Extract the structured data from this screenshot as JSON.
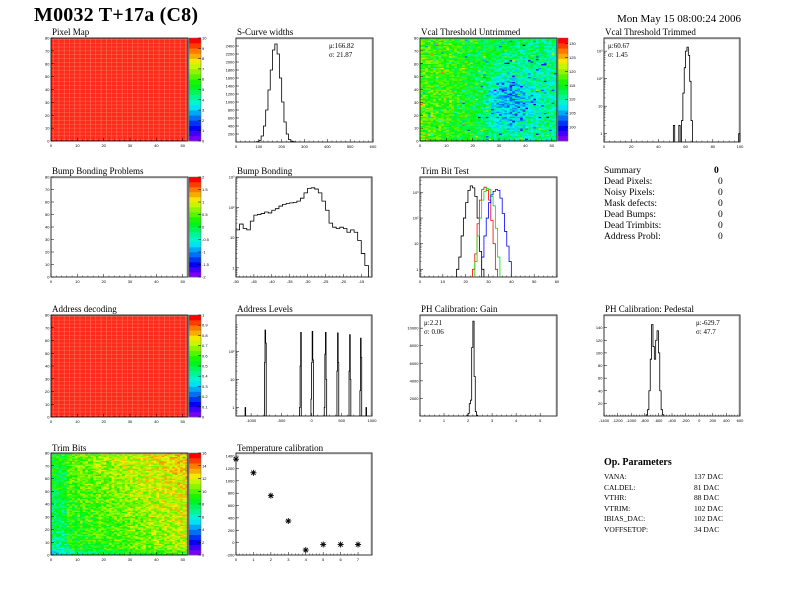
{
  "header": {
    "title": "M0032 T+17a (C8)",
    "date": "Mon May 15 08:00:24 2006"
  },
  "summary": {
    "title": "Summary",
    "total": "0",
    "rows": [
      {
        "label": "Dead Pixels:",
        "value": "0"
      },
      {
        "label": "Noisy Pixels:",
        "value": "0"
      },
      {
        "label": "Mask defects:",
        "value": "0"
      },
      {
        "label": "Dead Bumps:",
        "value": "0"
      },
      {
        "label": "Dead Trimbits:",
        "value": "0"
      },
      {
        "label": "Address Probl:",
        "value": "0"
      }
    ]
  },
  "op_parameters": {
    "title": "Op. Parameters",
    "rows": [
      {
        "label": "VANA:",
        "value": "137 DAC"
      },
      {
        "label": "CALDEL:",
        "value": "81 DAC"
      },
      {
        "label": "VTHR:",
        "value": "88 DAC"
      },
      {
        "label": "VTRIM:",
        "value": "102 DAC"
      },
      {
        "label": "IBIAS_DAC:",
        "value": "102 DAC"
      },
      {
        "label": "VOFFSETOP:",
        "value": "34 DAC"
      }
    ]
  },
  "colors": {
    "histogram_line": "#000000",
    "trim_bit_series": [
      "#000000",
      "#ff0000",
      "#00e000",
      "#0000ff"
    ]
  },
  "chart_data": [
    {
      "id": "pixel_map",
      "type": "heatmap",
      "title": "Pixel Map",
      "xlim": [
        0,
        52
      ],
      "ylim": [
        0,
        80
      ],
      "zlim": [
        0,
        10
      ],
      "xticks": [
        0,
        10,
        20,
        30,
        40,
        50
      ],
      "yticks": [
        0,
        10,
        20,
        30,
        40,
        50,
        60,
        70,
        80
      ],
      "zticks": [
        0,
        1,
        2,
        3,
        4,
        5,
        6,
        7,
        8,
        9,
        10
      ],
      "uniform_value": 10
    },
    {
      "id": "scurve_widths",
      "type": "bar",
      "title": "S-Curve widths",
      "stats": {
        "mean": "μ:166.82",
        "sigma": "σ: 21.87"
      },
      "stats_pos": "top-right",
      "xlim": [
        0,
        600
      ],
      "ylim": [
        0,
        2600
      ],
      "xticks": [
        0,
        100,
        200,
        300,
        400,
        500,
        600
      ],
      "yticks": [
        200,
        400,
        600,
        800,
        1000,
        1200,
        1400,
        1600,
        1800,
        2000,
        2200,
        2400
      ],
      "bin_width": 10,
      "bins": [
        [
          90,
          10
        ],
        [
          100,
          40
        ],
        [
          110,
          150
        ],
        [
          120,
          400
        ],
        [
          130,
          800
        ],
        [
          140,
          1300
        ],
        [
          150,
          1800
        ],
        [
          160,
          2300
        ],
        [
          170,
          2450
        ],
        [
          180,
          2200
        ],
        [
          190,
          1600
        ],
        [
          200,
          1000
        ],
        [
          210,
          500
        ],
        [
          220,
          200
        ],
        [
          230,
          60
        ],
        [
          240,
          20
        ],
        [
          250,
          5
        ]
      ]
    },
    {
      "id": "vcal_untrimmed",
      "type": "heatmap",
      "title": "Vcal Threshold Untrimmed",
      "xlim": [
        0,
        52
      ],
      "ylim": [
        0,
        80
      ],
      "zlim": [
        95,
        132
      ],
      "xticks": [
        0,
        10,
        20,
        30,
        40,
        50
      ],
      "yticks": [
        0,
        10,
        20,
        30,
        40,
        50,
        60,
        70,
        80
      ],
      "zticks": [
        100,
        105,
        110,
        115,
        120,
        125,
        130
      ]
    },
    {
      "id": "vcal_trimmed",
      "type": "bar",
      "title": "Vcal Threshold Trimmed",
      "log_y": true,
      "stats": {
        "mean": "μ:60.67",
        "sigma": "σ: 1.45"
      },
      "stats_pos": "top-left",
      "xlim": [
        0,
        100
      ],
      "ylim": [
        0.5,
        3000
      ],
      "xticks": [
        0,
        20,
        40,
        60,
        80,
        100
      ],
      "yticks": [
        1,
        10,
        100,
        1000
      ],
      "ytick_labels": [
        "1",
        "10",
        "10²",
        "10³"
      ],
      "bin_width": 1,
      "bins": [
        [
          51,
          2
        ],
        [
          55,
          2
        ],
        [
          57,
          3
        ],
        [
          58,
          30
        ],
        [
          59,
          250
        ],
        [
          60,
          1000
        ],
        [
          61,
          1400
        ],
        [
          62,
          700
        ],
        [
          63,
          80
        ],
        [
          64,
          3
        ],
        [
          99,
          1
        ]
      ]
    },
    {
      "id": "bump_bonding_problems",
      "type": "heatmap",
      "title": "Bump Bonding Problems",
      "xlim": [
        0,
        52
      ],
      "ylim": [
        0,
        80
      ],
      "zlim": [
        -2,
        2
      ],
      "xticks": [
        0,
        10,
        20,
        30,
        40,
        50
      ],
      "yticks": [
        0,
        10,
        20,
        30,
        40,
        50,
        60,
        70,
        80
      ],
      "zticks": [
        -2,
        -1.5,
        -1,
        -0.5,
        0,
        0.5,
        1,
        1.5,
        2
      ],
      "empty": true
    },
    {
      "id": "bump_bonding",
      "type": "bar",
      "title": "Bump Bonding",
      "log_y": true,
      "xlim": [
        -50,
        -12
      ],
      "ylim": [
        0.5,
        1000
      ],
      "xticks": [
        -50,
        -45,
        -40,
        -35,
        -30,
        -25,
        -20,
        -15
      ],
      "yticks": [
        1,
        10,
        100,
        1000
      ],
      "ytick_labels": [
        "1",
        "10",
        "10²",
        "10³"
      ],
      "bin_width": 1,
      "bins": [
        [
          -50,
          18
        ],
        [
          -49,
          28
        ],
        [
          -48,
          20
        ],
        [
          -47,
          18
        ],
        [
          -46,
          35
        ],
        [
          -45,
          55
        ],
        [
          -44,
          58
        ],
        [
          -43,
          62
        ],
        [
          -42,
          70
        ],
        [
          -41,
          65
        ],
        [
          -40,
          80
        ],
        [
          -39,
          90
        ],
        [
          -38,
          110
        ],
        [
          -37,
          125
        ],
        [
          -36,
          135
        ],
        [
          -35,
          140
        ],
        [
          -34,
          145
        ],
        [
          -33,
          160
        ],
        [
          -32,
          200
        ],
        [
          -31,
          300
        ],
        [
          -30,
          420
        ],
        [
          -29,
          440
        ],
        [
          -28,
          400
        ],
        [
          -27,
          300
        ],
        [
          -26,
          160
        ],
        [
          -25,
          80
        ],
        [
          -24,
          30
        ],
        [
          -23,
          22
        ],
        [
          -22,
          20
        ],
        [
          -21,
          22
        ],
        [
          -20,
          20
        ],
        [
          -19,
          15
        ],
        [
          -18,
          18
        ],
        [
          -17,
          15
        ],
        [
          -16,
          8
        ],
        [
          -15,
          3
        ],
        [
          -14,
          1.2
        ]
      ]
    },
    {
      "id": "trim_bit_test",
      "type": "bar",
      "title": "Trim Bit Test",
      "log_y": true,
      "xlim": [
        0,
        60
      ],
      "ylim": [
        0.5,
        4000
      ],
      "xticks": [
        0,
        10,
        20,
        30,
        40,
        50,
        60
      ],
      "yticks": [
        1,
        10,
        100,
        1000
      ],
      "ytick_labels": [
        "1",
        "10",
        "10²",
        "10³"
      ],
      "bin_width": 1,
      "series": [
        {
          "bins": [
            [
              16,
              1
            ],
            [
              17,
              3
            ],
            [
              18,
              20
            ],
            [
              19,
              100
            ],
            [
              20,
              400
            ],
            [
              21,
              1200
            ],
            [
              22,
              1800
            ],
            [
              23,
              1500
            ],
            [
              24,
              700
            ],
            [
              25,
              100
            ],
            [
              26,
              5
            ],
            [
              27,
              1
            ]
          ]
        },
        {
          "bins": [
            [
              23,
              1
            ],
            [
              24,
              4
            ],
            [
              25,
              60
            ],
            [
              26,
              500
            ],
            [
              27,
              1300
            ],
            [
              28,
              1600
            ],
            [
              29,
              1200
            ],
            [
              30,
              500
            ],
            [
              31,
              80
            ],
            [
              32,
              10
            ],
            [
              33,
              1
            ]
          ]
        },
        {
          "bins": [
            [
              24,
              2
            ],
            [
              25,
              20
            ],
            [
              26,
              100
            ],
            [
              27,
              500
            ],
            [
              28,
              1100
            ],
            [
              29,
              1400
            ],
            [
              30,
              1300
            ],
            [
              31,
              700
            ],
            [
              32,
              300
            ],
            [
              33,
              40
            ],
            [
              34,
              3
            ]
          ]
        },
        {
          "bins": [
            [
              27,
              3
            ],
            [
              28,
              20
            ],
            [
              29,
              100
            ],
            [
              30,
              400
            ],
            [
              31,
              800
            ],
            [
              32,
              1100
            ],
            [
              33,
              1300
            ],
            [
              34,
              1200
            ],
            [
              35,
              600
            ],
            [
              36,
              150
            ],
            [
              37,
              30
            ],
            [
              38,
              8
            ],
            [
              39,
              2
            ]
          ]
        }
      ]
    },
    {
      "id": "address_decoding",
      "type": "heatmap",
      "title": "Address decoding",
      "xlim": [
        0,
        52
      ],
      "ylim": [
        0,
        80
      ],
      "zlim": [
        0,
        1
      ],
      "xticks": [
        0,
        10,
        20,
        30,
        40,
        50
      ],
      "yticks": [
        0,
        10,
        20,
        30,
        40,
        50,
        60,
        70,
        80
      ],
      "zticks": [
        0,
        0.1,
        0.2,
        0.3,
        0.4,
        0.5,
        0.6,
        0.7,
        0.8,
        0.9,
        1
      ],
      "uniform_value": 1
    },
    {
      "id": "address_levels",
      "type": "bar",
      "title": "Address Levels",
      "log_y": true,
      "xlim": [
        -1250,
        1000
      ],
      "ylim": [
        0.5,
        2000
      ],
      "xticks": [
        -1000,
        -500,
        0,
        500,
        1000
      ],
      "yticks": [
        1,
        10,
        100
      ],
      "ytick_labels": [
        "1",
        "10",
        "10²"
      ],
      "bin_width": 10,
      "bins": [
        [
          -1100,
          1
        ],
        [
          -780,
          40
        ],
        [
          -770,
          580
        ],
        [
          -760,
          200
        ],
        [
          -200,
          1
        ],
        [
          -190,
          30
        ],
        [
          -180,
          480
        ],
        [
          -10,
          2
        ],
        [
          0,
          40
        ],
        [
          10,
          520
        ],
        [
          20,
          50
        ],
        [
          210,
          1
        ],
        [
          220,
          80
        ],
        [
          230,
          480
        ],
        [
          240,
          10
        ],
        [
          420,
          20
        ],
        [
          430,
          460
        ],
        [
          440,
          40
        ],
        [
          620,
          20
        ],
        [
          630,
          400
        ],
        [
          640,
          10
        ],
        [
          800,
          4
        ],
        [
          810,
          300
        ],
        [
          820,
          60
        ],
        [
          900,
          1
        ]
      ]
    },
    {
      "id": "ph_gain",
      "type": "bar",
      "title": "PH Calibration: Gain",
      "stats": {
        "mean": "μ:2.21",
        "sigma": "σ: 0.06"
      },
      "stats_pos": "top-left",
      "xlim": [
        0,
        5.7
      ],
      "ylim": [
        0,
        11500
      ],
      "xticks": [
        0,
        1,
        2,
        3,
        4,
        5
      ],
      "yticks": [
        2000,
        4000,
        6000,
        8000,
        10000
      ],
      "bin_width": 0.05,
      "bins": [
        [
          1.95,
          100
        ],
        [
          2.0,
          300
        ],
        [
          2.05,
          1400
        ],
        [
          2.1,
          1800
        ],
        [
          2.15,
          7800
        ],
        [
          2.2,
          10800
        ],
        [
          2.25,
          4500
        ],
        [
          2.3,
          500
        ],
        [
          2.35,
          50
        ]
      ]
    },
    {
      "id": "ph_pedestal",
      "type": "bar",
      "title": "PH Calibration: Pedestal",
      "stats": {
        "mean": "μ:-629.7",
        "sigma": "σ: 47.7"
      },
      "stats_pos": "top-right",
      "xlim": [
        -1400,
        600
      ],
      "ylim": [
        0,
        160
      ],
      "xticks": [
        -1400,
        -1200,
        -1000,
        -800,
        -600,
        -400,
        -200,
        0,
        200,
        400,
        600
      ],
      "yticks": [
        20,
        40,
        60,
        80,
        100,
        120,
        140
      ],
      "bin_width": 20,
      "bins": [
        [
          -780,
          2
        ],
        [
          -760,
          10
        ],
        [
          -740,
          40
        ],
        [
          -720,
          90
        ],
        [
          -700,
          145
        ],
        [
          -680,
          110
        ],
        [
          -660,
          90
        ],
        [
          -640,
          120
        ],
        [
          -620,
          135
        ],
        [
          -600,
          100
        ],
        [
          -580,
          40
        ],
        [
          -560,
          10
        ],
        [
          -540,
          2
        ]
      ]
    },
    {
      "id": "trim_bits",
      "type": "heatmap",
      "title": "Trim Bits",
      "xlim": [
        0,
        52
      ],
      "ylim": [
        0,
        80
      ],
      "zlim": [
        0,
        16
      ],
      "xticks": [
        0,
        10,
        20,
        30,
        40,
        50
      ],
      "yticks": [
        0,
        10,
        20,
        30,
        40,
        50,
        60,
        70,
        80
      ],
      "zticks": [
        0,
        2,
        4,
        6,
        8,
        10,
        12,
        14,
        16
      ]
    },
    {
      "id": "temperature_calibration",
      "type": "scatter",
      "title": "Temperature calibration",
      "xlim": [
        0,
        7.8
      ],
      "ylim": [
        -200,
        1450
      ],
      "xticks": [
        0,
        1,
        2,
        3,
        4,
        5,
        6,
        7
      ],
      "yticks": [
        -200,
        0,
        200,
        400,
        600,
        800,
        1000,
        1200,
        1400
      ],
      "points": [
        [
          0,
          1350
        ],
        [
          1,
          1130
        ],
        [
          2,
          760
        ],
        [
          3,
          350
        ],
        [
          4,
          -120
        ],
        [
          5,
          -30
        ],
        [
          6,
          -30
        ],
        [
          7,
          -30
        ]
      ]
    }
  ]
}
